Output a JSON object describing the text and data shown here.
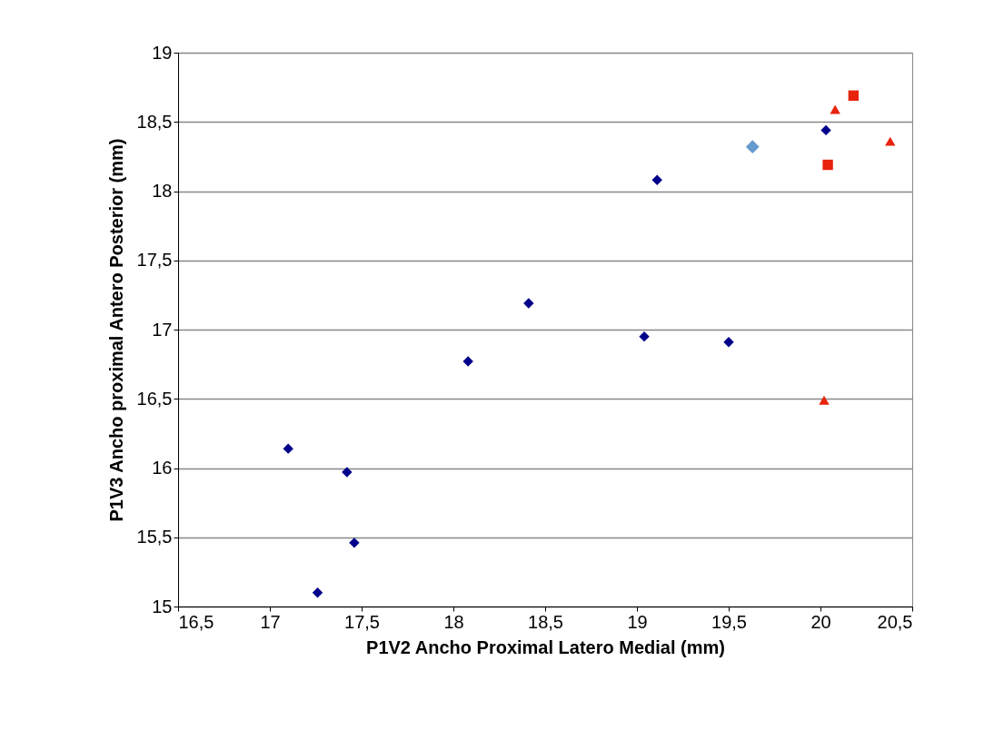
{
  "chart_data": {
    "type": "scatter",
    "xlabel": "P1V2 Ancho Proximal Latero Medial (mm)",
    "ylabel": "P1V3 Ancho proximal Antero Posterior (mm)",
    "xlim": [
      16.5,
      20.5
    ],
    "xticks": [
      {
        "value": 16.5,
        "label": "16,5"
      },
      17,
      {
        "value": 17.5,
        "label": "17,5"
      },
      18,
      {
        "value": 18.5,
        "label": "18,5"
      },
      19,
      {
        "value": 19.5,
        "label": "19,5"
      },
      20,
      {
        "value": 20.5,
        "label": "20,5"
      }
    ],
    "ylim": [
      15,
      19
    ],
    "yticks": [
      15,
      {
        "value": 15.5,
        "label": "15,5"
      },
      16,
      {
        "value": 16.5,
        "label": "16,5"
      },
      17,
      {
        "value": 17.5,
        "label": "17,5"
      },
      18,
      {
        "value": 18.5,
        "label": "18,5"
      },
      19
    ],
    "grid": "y",
    "series": [
      {
        "color": "#00008b",
        "marker": "diamond",
        "x": [
          17.1,
          17.42,
          17.46,
          17.26,
          18.08,
          18.41,
          19.04,
          19.11,
          19.5,
          20.03
        ],
        "values": [
          16.14,
          15.97,
          15.46,
          15.1,
          16.77,
          17.19,
          16.95,
          18.08,
          16.91,
          18.44
        ]
      },
      {
        "color": "#6699cc",
        "marker": "diamond",
        "x": [
          19.63
        ],
        "values": [
          18.32
        ]
      },
      {
        "color": "#e8230c",
        "marker": "square",
        "x": [
          20.18,
          20.04
        ],
        "values": [
          18.69,
          18.19
        ]
      },
      {
        "color": "#e8230c",
        "marker": "triangle",
        "x": [
          20.08,
          20.38,
          20.02
        ],
        "values": [
          18.59,
          18.36,
          16.49
        ]
      }
    ]
  }
}
